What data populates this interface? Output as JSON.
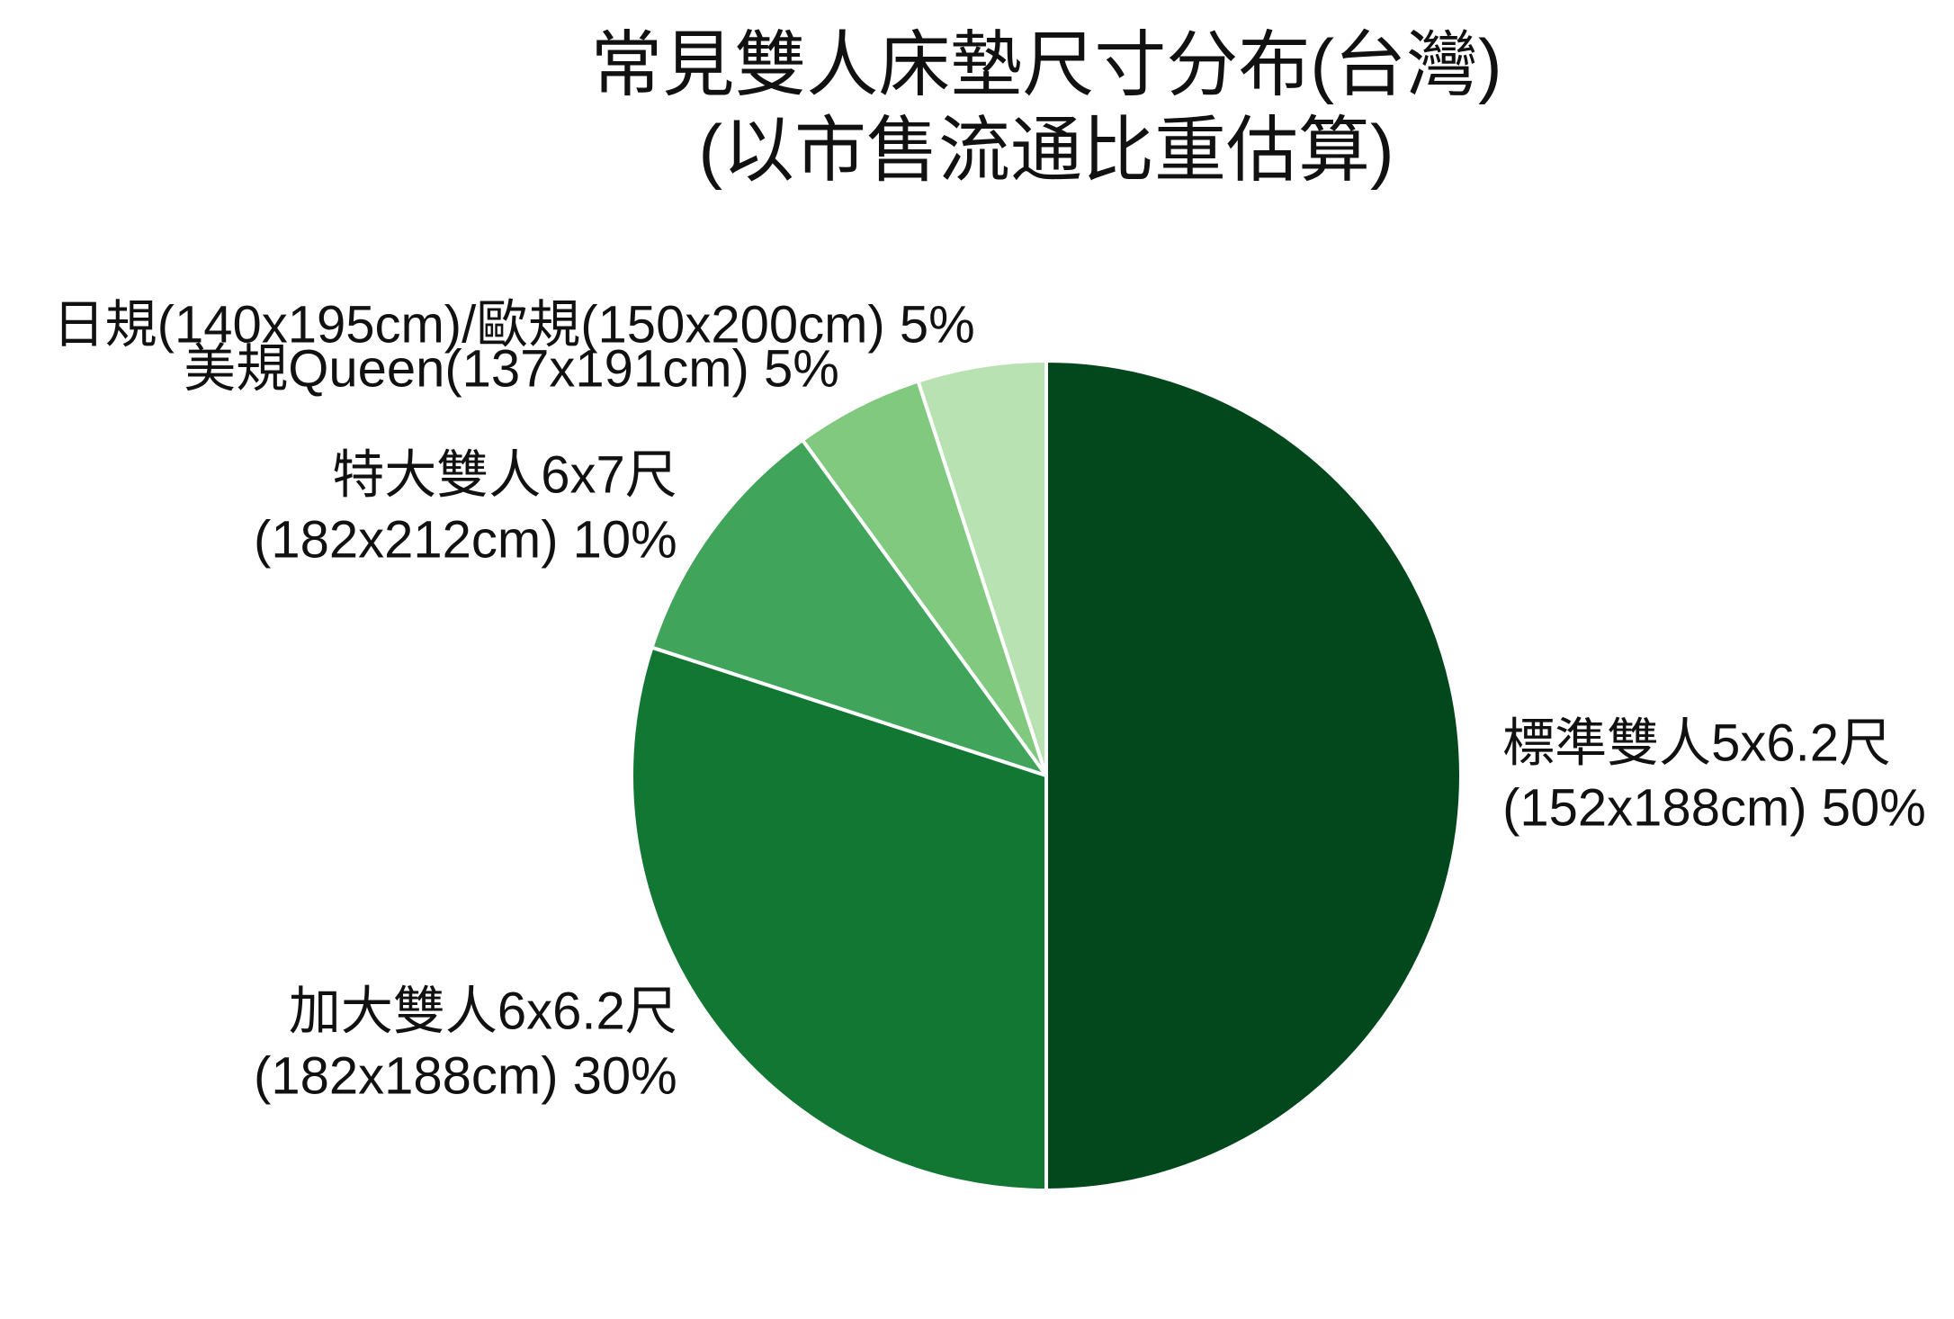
{
  "chart_data": {
    "type": "pie",
    "title_lines": [
      "常見雙人床墊尺寸分布(台灣)",
      "(以市售流通比重估算)"
    ],
    "slices": [
      {
        "label": [
          "標準雙人5x6.2尺",
          "(152x188cm) 50%"
        ],
        "value": 50,
        "color": "#03471d"
      },
      {
        "label": [
          "加大雙人6x6.2尺",
          "(182x188cm) 30%"
        ],
        "value": 30,
        "color": "#117733"
      },
      {
        "label": [
          "特大雙人6x7尺",
          "(182x212cm) 10%"
        ],
        "value": 10,
        "color": "#40a45b"
      },
      {
        "label": [
          "美規Queen(137x191cm) 5%"
        ],
        "value": 5,
        "color": "#81c97f"
      },
      {
        "label": [
          "日規(140x195cm)/歐規(150x200cm) 5%"
        ],
        "value": 5,
        "color": "#b9e2b2"
      }
    ]
  }
}
